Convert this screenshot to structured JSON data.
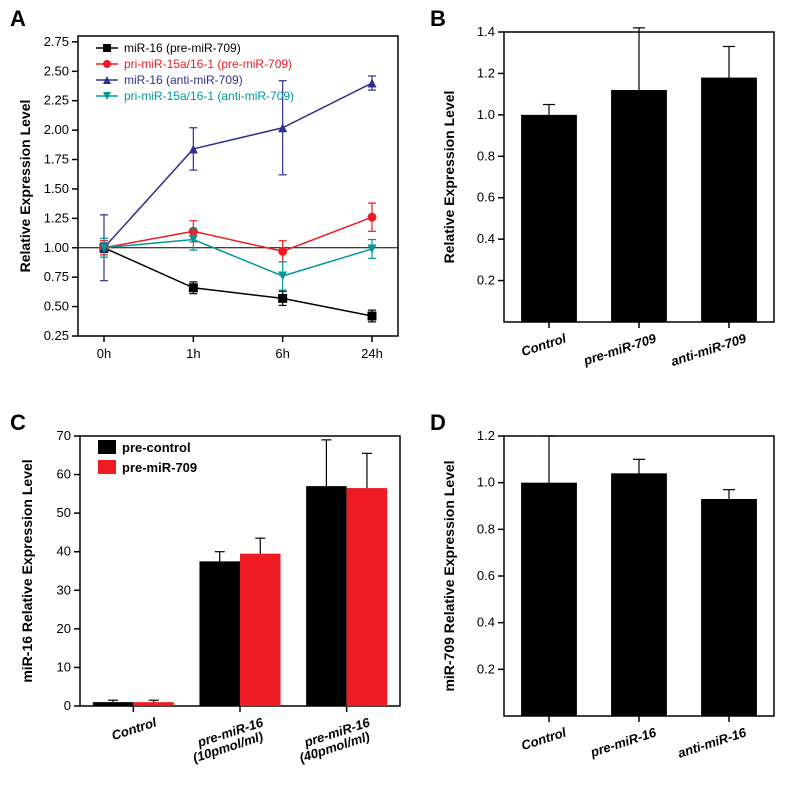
{
  "panelLabel": {
    "fontsize": 22,
    "fontweight": "bold",
    "color": "#000000"
  },
  "axis": {
    "tick_fontsize": 13,
    "title_fontsize": 14,
    "line_color": "#000000"
  },
  "A": {
    "label": "A",
    "type": "line",
    "x_categories": [
      "0h",
      "1h",
      "6h",
      "24h"
    ],
    "ylim": [
      0.25,
      2.8
    ],
    "ytick_step": 0.25,
    "ylabel": "Relative Expression Level",
    "reference_line_y": 1.0,
    "legend": {
      "pos": "top-inside",
      "fontsize": 12
    },
    "series": [
      {
        "name": "miR-16 (pre-miR-709)",
        "color": "#000000",
        "marker": "square-filled",
        "values": [
          1.0,
          0.66,
          0.57,
          0.42
        ],
        "errors": [
          0.04,
          0.05,
          0.06,
          0.05
        ]
      },
      {
        "name": "pri-miR-15a/16-1 (pre-miR-709)",
        "color": "#ed1c24",
        "marker": "circle-filled",
        "values": [
          1.0,
          1.14,
          0.97,
          1.26
        ],
        "errors": [
          0.06,
          0.09,
          0.09,
          0.12
        ]
      },
      {
        "name": "miR-16 (anti-miR-709)",
        "color": "#2e3192",
        "marker": "triangle-up-filled",
        "values": [
          1.0,
          1.84,
          2.02,
          2.4
        ],
        "errors": [
          0.28,
          0.18,
          0.4,
          0.06
        ]
      },
      {
        "name": "pri-miR-15a/16-1 (anti-miR-709)",
        "color": "#009999",
        "marker": "triangle-down-filled",
        "values": [
          1.0,
          1.07,
          0.76,
          0.99
        ],
        "errors": [
          0.08,
          0.09,
          0.12,
          0.08
        ]
      }
    ]
  },
  "B": {
    "label": "B",
    "type": "bar",
    "categories": [
      "Control",
      "pre-miR-709",
      "anti-miR-709"
    ],
    "values": [
      1.0,
      1.12,
      1.18
    ],
    "errors": [
      0.05,
      0.3,
      0.15
    ],
    "ylim": [
      0,
      1.4
    ],
    "yticks": [
      0.2,
      0.4,
      0.6,
      0.8,
      1.0,
      1.2,
      1.4
    ],
    "ylabel": "Relative Expression Level",
    "bar_color": "#000000",
    "bar_width": 0.62,
    "x_label_rotation": -18
  },
  "C": {
    "label": "C",
    "type": "grouped-bar",
    "categories": [
      "Control",
      "pre-miR-16\n(10pmol/ml)",
      "pre-miR-16\n(40pmol/ml)"
    ],
    "groups": [
      {
        "name": "pre-control",
        "color": "#000000",
        "values": [
          1.0,
          37.5,
          57.0
        ],
        "errors": [
          0.5,
          2.5,
          12.0
        ]
      },
      {
        "name": "pre-miR-709",
        "color": "#ed1c24",
        "values": [
          1.0,
          39.5,
          56.5
        ],
        "errors": [
          0.5,
          4.0,
          9.0
        ]
      }
    ],
    "ylim": [
      0,
      70
    ],
    "yticks": [
      0,
      10,
      20,
      30,
      40,
      50,
      60,
      70
    ],
    "ylabel": "miR-16 Relative Expression Level",
    "bar_width": 0.38,
    "x_label_rotation": -18,
    "legend": {
      "pos": "top-left-inside",
      "fontsize": 13
    }
  },
  "D": {
    "label": "D",
    "type": "bar",
    "categories": [
      "Control",
      "pre-miR-16",
      "anti-miR-16"
    ],
    "values": [
      1.0,
      1.04,
      0.93
    ],
    "errors": [
      0.2,
      0.06,
      0.04
    ],
    "ylim": [
      0,
      1.2
    ],
    "yticks": [
      0.2,
      0.4,
      0.6,
      0.8,
      1.0,
      1.2
    ],
    "ylabel": "miR-709 Relative Expression Level",
    "bar_color": "#000000",
    "bar_width": 0.62,
    "x_label_rotation": -18
  }
}
